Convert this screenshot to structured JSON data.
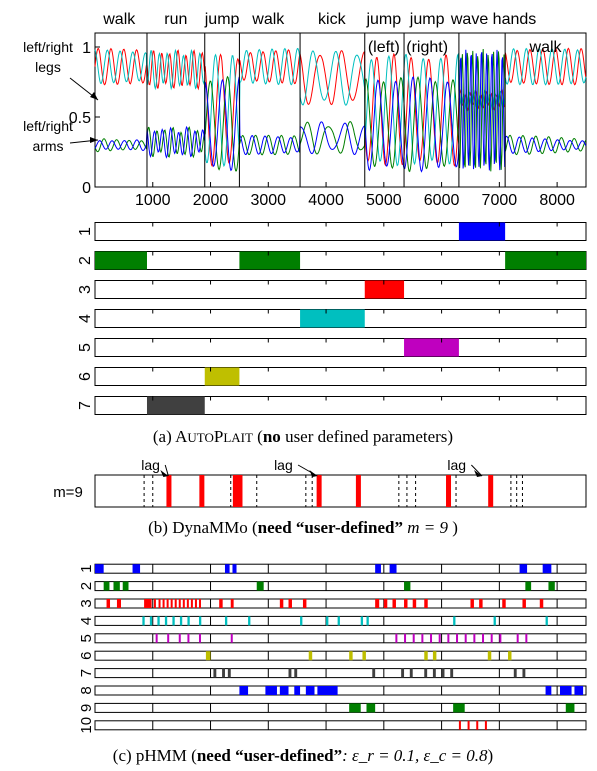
{
  "colors": {
    "c1": "#0000ff",
    "c2": "#007f00",
    "c3": "#ff0000",
    "c4": "#00bfbf",
    "c5": "#bf00bf",
    "c6": "#bfbf00",
    "c7": "#404040",
    "ink": "#000000"
  },
  "chart_data": [
    {
      "type": "line",
      "activity_labels": [
        {
          "text": "walk",
          "x": 420
        },
        {
          "text": "run",
          "x": 1400
        },
        {
          "text": "jump",
          "x": 2200
        },
        {
          "text": "walk",
          "x": 3000
        },
        {
          "text": "kick",
          "x": 4100
        },
        {
          "text": "jump",
          "x": 5000
        },
        {
          "text": "(left)",
          "x": 5000,
          "line": 2
        },
        {
          "text": "jump",
          "x": 5750
        },
        {
          "text": "(right)",
          "x": 5750,
          "line": 2
        },
        {
          "text": "wave hands",
          "x": 6900
        },
        {
          "text": "walk",
          "x": 7800,
          "line": 2
        }
      ],
      "boundaries": [
        900,
        1900,
        2500,
        3550,
        4670,
        5350,
        6300,
        7100
      ],
      "xlim": [
        0,
        8500
      ],
      "ylim": [
        0,
        1.1
      ],
      "x_ticks": [
        1000,
        2000,
        3000,
        4000,
        5000,
        6000,
        7000,
        8000
      ],
      "y_ticks": [
        0,
        0.5,
        1
      ],
      "series": [
        {
          "color_key": "c3"
        },
        {
          "color_key": "c4"
        },
        {
          "color_key": "c2"
        },
        {
          "color_key": "c1"
        }
      ],
      "annotations": [
        {
          "text": "left/right",
          "line2": "legs"
        },
        {
          "text": "left/right",
          "line2": "arms"
        }
      ]
    },
    {
      "type": "bar",
      "caption": {
        "pre": "(a) ",
        "name_big1": "A",
        "name_small1": "UTO",
        "name_big2": "P",
        "name_small2": "LAIT",
        "mid": " (",
        "bold": "no",
        "post": " user defined parameters)"
      },
      "xlim": [
        0,
        8500
      ],
      "rows": [
        {
          "label": "1",
          "color_key": "c1",
          "segments": [
            [
              6300,
              7100
            ]
          ]
        },
        {
          "label": "2",
          "color_key": "c2",
          "segments": [
            [
              0,
              900
            ],
            [
              2500,
              3550
            ],
            [
              7100,
              8500
            ]
          ]
        },
        {
          "label": "3",
          "color_key": "c3",
          "segments": [
            [
              4670,
              5350
            ]
          ]
        },
        {
          "label": "4",
          "color_key": "c4",
          "segments": [
            [
              3550,
              4670
            ]
          ]
        },
        {
          "label": "5",
          "color_key": "c5",
          "segments": [
            [
              5350,
              6300
            ]
          ]
        },
        {
          "label": "6",
          "color_key": "c6",
          "segments": [
            [
              1900,
              2500
            ]
          ]
        },
        {
          "label": "7",
          "color_key": "c7",
          "segments": [
            [
              900,
              1900
            ]
          ]
        }
      ]
    },
    {
      "type": "bar",
      "caption": {
        "pre": "(b) DynaMMo (",
        "bold": "need “user-defined”",
        "math": " m = 9 ",
        "post": ")"
      },
      "row_label": "m=9",
      "xlim": [
        0,
        8500
      ],
      "lag_labels": [
        {
          "text": "lag",
          "x": 800,
          "arrow_to": 1270
        },
        {
          "text": "lag",
          "x": 3100,
          "arrow_to": 3850
        },
        {
          "text": "lag",
          "x": 6100,
          "arrow_to": 6700
        }
      ],
      "dashed_lines": [
        850,
        1000,
        2350,
        2800,
        3650,
        3760,
        5260,
        5400,
        5550,
        6250,
        7200,
        7300,
        7400
      ],
      "red_bars": [
        1280,
        1850,
        2430,
        2510,
        3880,
        4560,
        6120,
        6850
      ]
    },
    {
      "type": "bar",
      "caption": {
        "pre": "(c) pHMM (",
        "bold": "need “user-defined”",
        "math": ": ε_r = 0.1, ε_c = 0.8",
        "post": ")"
      },
      "xlim": [
        0,
        8500
      ],
      "rows": [
        {
          "label": "1",
          "color_key": "c1",
          "segments": [
            [
              0,
              150
            ],
            [
              650,
              780
            ],
            [
              2250,
              2330
            ],
            [
              2380,
              2450
            ],
            [
              4850,
              4950
            ],
            [
              5100,
              5220
            ],
            [
              7350,
              7480
            ],
            [
              7750,
              7900
            ]
          ]
        },
        {
          "label": "2",
          "color_key": "c2",
          "segments": [
            [
              150,
              250
            ],
            [
              320,
              430
            ],
            [
              480,
              580
            ],
            [
              2800,
              2920
            ],
            [
              5350,
              5460
            ],
            [
              7450,
              7550
            ],
            [
              7850,
              7960
            ]
          ]
        },
        {
          "label": "3",
          "color_key": "c3",
          "segments": [
            [
              200,
              260
            ],
            [
              380,
              450
            ],
            [
              850,
              980
            ],
            [
              1020,
              1050
            ],
            [
              1100,
              1130
            ],
            [
              1170,
              1200
            ],
            [
              1240,
              1270
            ],
            [
              1310,
              1340
            ],
            [
              1380,
              1410
            ],
            [
              1450,
              1480
            ],
            [
              1520,
              1550
            ],
            [
              1590,
              1620
            ],
            [
              1660,
              1690
            ],
            [
              1730,
              1760
            ],
            [
              1800,
              1830
            ],
            [
              2150,
              2210
            ],
            [
              2350,
              2400
            ],
            [
              3200,
              3260
            ],
            [
              3350,
              3410
            ],
            [
              3600,
              3660
            ],
            [
              4850,
              4920
            ],
            [
              5000,
              5060
            ],
            [
              5150,
              5210
            ],
            [
              5350,
              5410
            ],
            [
              5500,
              5560
            ],
            [
              5700,
              5760
            ],
            [
              6500,
              6560
            ],
            [
              6650,
              6710
            ],
            [
              7050,
              7110
            ],
            [
              7400,
              7460
            ],
            [
              7700,
              7760
            ]
          ]
        },
        {
          "label": "4",
          "color_key": "c4",
          "segments": [
            [
              820,
              860
            ],
            [
              950,
              990
            ],
            [
              1080,
              1120
            ],
            [
              1210,
              1250
            ],
            [
              1340,
              1380
            ],
            [
              1470,
              1510
            ],
            [
              1600,
              1640
            ],
            [
              1800,
              1840
            ],
            [
              2250,
              2290
            ],
            [
              2650,
              2690
            ],
            [
              3550,
              3590
            ],
            [
              4000,
              4040
            ],
            [
              4200,
              4240
            ],
            [
              4600,
              4640
            ],
            [
              4700,
              4740
            ],
            [
              6200,
              6240
            ],
            [
              6900,
              6940
            ],
            [
              7800,
              7840
            ]
          ]
        },
        {
          "label": "5",
          "color_key": "c5",
          "segments": [
            [
              1050,
              1070
            ],
            [
              1250,
              1270
            ],
            [
              1450,
              1470
            ],
            [
              1600,
              1620
            ],
            [
              1800,
              1820
            ],
            [
              2350,
              2370
            ],
            [
              5200,
              5230
            ],
            [
              5350,
              5380
            ],
            [
              5500,
              5530
            ],
            [
              5650,
              5680
            ],
            [
              5800,
              5830
            ],
            [
              5950,
              5980
            ],
            [
              6100,
              6130
            ],
            [
              6250,
              6280
            ],
            [
              6400,
              6430
            ],
            [
              6550,
              6580
            ],
            [
              6700,
              6730
            ],
            [
              6850,
              6880
            ],
            [
              7000,
              7030
            ],
            [
              7300,
              7330
            ],
            [
              7450,
              7480
            ]
          ]
        },
        {
          "label": "6",
          "color_key": "c6",
          "segments": [
            [
              1920,
              2000
            ],
            [
              3700,
              3760
            ],
            [
              4400,
              4460
            ],
            [
              4630,
              4690
            ],
            [
              5700,
              5760
            ],
            [
              5850,
              5910
            ],
            [
              6800,
              6860
            ],
            [
              7150,
              7210
            ]
          ]
        },
        {
          "label": "7",
          "color_key": "c7",
          "segments": [
            [
              2050,
              2100
            ],
            [
              2200,
              2250
            ],
            [
              2300,
              2350
            ],
            [
              3350,
              3400
            ],
            [
              3450,
              3500
            ],
            [
              4800,
              4850
            ],
            [
              5300,
              5350
            ],
            [
              5450,
              5500
            ],
            [
              5700,
              5750
            ],
            [
              5850,
              5900
            ],
            [
              6000,
              6050
            ],
            [
              6150,
              6200
            ],
            [
              7250,
              7300
            ],
            [
              7400,
              7450
            ]
          ]
        },
        {
          "label": "8",
          "color_key": "c1",
          "segments": [
            [
              2500,
              2650
            ],
            [
              2950,
              3150
            ],
            [
              3200,
              3350
            ],
            [
              3450,
              3550
            ],
            [
              3650,
              3800
            ],
            [
              3850,
              4200
            ],
            [
              7800,
              7900
            ],
            [
              8050,
              8250
            ],
            [
              8300,
              8450
            ]
          ]
        },
        {
          "label": "9",
          "color_key": "c2",
          "segments": [
            [
              4400,
              4600
            ],
            [
              4700,
              4850
            ],
            [
              6200,
              6400
            ],
            [
              8150,
              8300
            ]
          ]
        },
        {
          "label": "10",
          "color_key": "c3",
          "segments": [
            [
              6300,
              6330
            ],
            [
              6450,
              6480
            ],
            [
              6600,
              6630
            ],
            [
              6750,
              6780
            ]
          ]
        }
      ]
    }
  ]
}
